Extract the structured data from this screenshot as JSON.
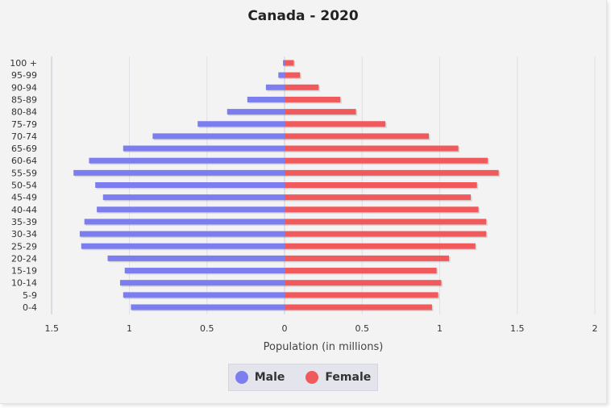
{
  "colors": {
    "male": "#7c7ef0",
    "female": "#f05a5d"
  },
  "chart_data": {
    "type": "bar",
    "orientation": "horizontal",
    "title": "Canada - 2020",
    "xlabel": "Population (in millions)",
    "x_ticks": [
      "1.5",
      "1",
      "0.5",
      "0",
      "0.5",
      "1",
      "1.5",
      "2"
    ],
    "xlim": [
      -1.5,
      2
    ],
    "grid": true,
    "legend_position": "bottom",
    "categories": [
      "100 +",
      "95-99",
      "90-94",
      "85-89",
      "80-84",
      "75-79",
      "70-74",
      "65-69",
      "60-64",
      "55-59",
      "50-54",
      "45-49",
      "40-44",
      "35-39",
      "30-34",
      "25-29",
      "20-24",
      "15-19",
      "10-14",
      "5-9",
      "0-4"
    ],
    "series": [
      {
        "name": "Male",
        "values": [
          0.01,
          0.04,
          0.12,
          0.24,
          0.37,
          0.56,
          0.85,
          1.04,
          1.26,
          1.36,
          1.22,
          1.17,
          1.21,
          1.29,
          1.32,
          1.31,
          1.14,
          1.03,
          1.06,
          1.04,
          0.99
        ]
      },
      {
        "name": "Female",
        "values": [
          0.06,
          0.1,
          0.22,
          0.36,
          0.46,
          0.65,
          0.93,
          1.12,
          1.31,
          1.38,
          1.24,
          1.2,
          1.25,
          1.3,
          1.3,
          1.23,
          1.06,
          0.98,
          1.01,
          0.99,
          0.95
        ]
      }
    ]
  }
}
